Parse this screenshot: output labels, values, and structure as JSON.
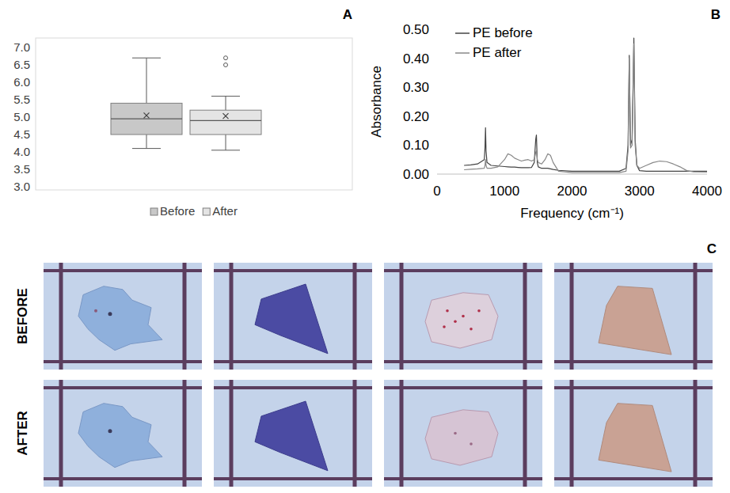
{
  "chart_data": [
    {
      "type": "box",
      "annotations": [
        "A"
      ],
      "series": [
        {
          "name": "Before",
          "color": "#c8c8c8",
          "min": 4.1,
          "q1": 4.5,
          "median": 4.95,
          "q3": 5.4,
          "max": 6.7,
          "mean": 5.05,
          "outliers": []
        },
        {
          "name": "After",
          "color": "#e4e4e4",
          "min": 4.05,
          "q1": 4.5,
          "median": 4.9,
          "q3": 5.2,
          "max": 5.6,
          "mean": 5.03,
          "outliers": [
            6.7,
            6.5
          ]
        }
      ],
      "ylim": [
        3,
        7
      ],
      "yticks": [
        {
          "value": 3,
          "label": "3.0"
        },
        {
          "value": 3.5,
          "label": "3.5"
        },
        {
          "value": 4,
          "label": "4.0"
        },
        {
          "value": 4.5,
          "label": "4.5"
        },
        {
          "value": 5,
          "label": "5.0"
        },
        {
          "value": 5.5,
          "label": "5.5"
        },
        {
          "value": 6,
          "label": "6.0"
        },
        {
          "value": 6.5,
          "label": "6.5"
        },
        {
          "value": 7,
          "label": "7.0"
        }
      ],
      "grid": false,
      "legend": "bottom",
      "tick_labels": "y"
    },
    {
      "type": "line",
      "annotations": [
        "B"
      ],
      "x_label": "Frequency (cm⁻¹)",
      "y_label": "Absorbance",
      "x": [
        400,
        500,
        600,
        700,
        710,
        718,
        726,
        740,
        800,
        900,
        1000,
        1050,
        1100,
        1150,
        1200,
        1250,
        1300,
        1350,
        1400,
        1440,
        1462,
        1472,
        1485,
        1500,
        1550,
        1600,
        1640,
        1680,
        1720,
        1800,
        2000,
        2400,
        2700,
        2800,
        2830,
        2848,
        2866,
        2890,
        2916,
        2935,
        2960,
        3000,
        3100,
        3200,
        3300,
        3400,
        3500,
        3600,
        3700,
        3800,
        4000
      ],
      "series": [
        {
          "name": "PE before",
          "color": "#444444",
          "values": [
            0.03,
            0.032,
            0.035,
            0.05,
            0.09,
            0.16,
            0.08,
            0.04,
            0.03,
            0.028,
            0.026,
            0.025,
            0.024,
            0.024,
            0.023,
            0.022,
            0.022,
            0.022,
            0.023,
            0.04,
            0.12,
            0.135,
            0.04,
            0.025,
            0.02,
            0.02,
            0.02,
            0.018,
            0.016,
            0.013,
            0.01,
            0.01,
            0.01,
            0.02,
            0.1,
            0.41,
            0.1,
            0.12,
            0.47,
            0.12,
            0.03,
            0.012,
            0.01,
            0.01,
            0.01,
            0.01,
            0.01,
            0.01,
            0.01,
            0.01,
            0.01
          ]
        },
        {
          "name": "PE after",
          "color": "#888888",
          "values": [
            0.015,
            0.017,
            0.018,
            0.02,
            0.03,
            0.05,
            0.03,
            0.02,
            0.02,
            0.025,
            0.05,
            0.07,
            0.065,
            0.055,
            0.05,
            0.045,
            0.048,
            0.05,
            0.045,
            0.05,
            0.075,
            0.08,
            0.05,
            0.04,
            0.035,
            0.05,
            0.07,
            0.065,
            0.04,
            0.01,
            0.005,
            0.005,
            0.005,
            0.01,
            0.08,
            0.4,
            0.09,
            0.1,
            0.45,
            0.1,
            0.03,
            0.02,
            0.03,
            0.04,
            0.045,
            0.043,
            0.035,
            0.025,
            0.012,
            0.008,
            0.007
          ]
        }
      ],
      "xlim": [
        0,
        4000
      ],
      "xticks": [
        0,
        1000,
        2000,
        3000,
        4000
      ],
      "ylim": [
        0,
        0.5
      ],
      "yticks": [
        {
          "value": 0,
          "label": "0.00"
        },
        {
          "value": 0.1,
          "label": "0.10"
        },
        {
          "value": 0.2,
          "label": "0.20"
        },
        {
          "value": 0.3,
          "label": "0.30"
        },
        {
          "value": 0.4,
          "label": "0.40"
        },
        {
          "value": 0.5,
          "label": "0.50"
        }
      ],
      "grid": false,
      "legend": "top-left"
    }
  ],
  "photo_panel": {
    "annotations": [
      "C"
    ],
    "rows": [
      "BEFORE",
      "AFTER"
    ]
  }
}
